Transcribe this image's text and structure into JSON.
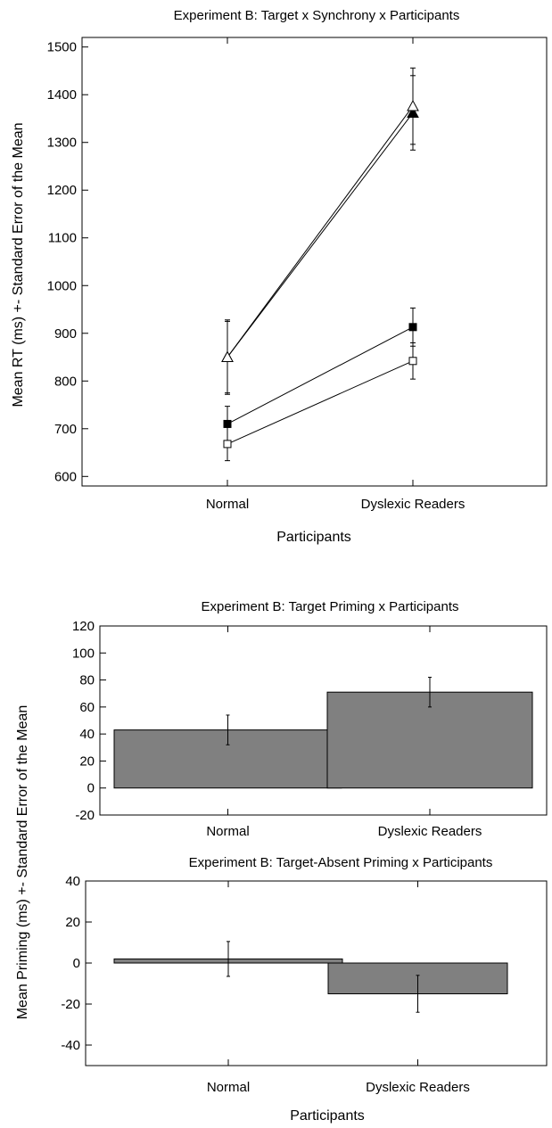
{
  "chart_data": [
    {
      "type": "line",
      "title": "Experiment B: Target x Synchrony x Participants",
      "xlabel": "Participants",
      "ylabel": "Mean RT (ms)  +- Standard Error of the Mean",
      "categories": [
        "Normal",
        "Dyslexic Readers"
      ],
      "ylim": [
        580,
        1520
      ],
      "yticks": [
        600,
        700,
        800,
        900,
        1000,
        1100,
        1200,
        1300,
        1400,
        1500
      ],
      "grid": false,
      "series": [
        {
          "marker": "filled-triangle",
          "values": [
            850,
            1362
          ],
          "errors": [
            78,
            78
          ]
        },
        {
          "marker": "open-triangle",
          "values": [
            850,
            1376
          ],
          "errors": [
            75,
            80
          ]
        },
        {
          "marker": "filled-square",
          "values": [
            710,
            913
          ],
          "errors": [
            37,
            40
          ]
        },
        {
          "marker": "open-square",
          "values": [
            668,
            842
          ],
          "errors": [
            35,
            38
          ]
        }
      ]
    },
    {
      "type": "bar",
      "title": "Experiment B: Target Priming x Participants",
      "xlabel": "",
      "categories": [
        "Normal",
        "Dyslexic Readers"
      ],
      "values": [
        43,
        71
      ],
      "errors": [
        11,
        11
      ],
      "ylim": [
        -20,
        120
      ],
      "yticks": [
        -20,
        0,
        20,
        40,
        60,
        80,
        100,
        120
      ],
      "bar_color": "#808080",
      "grid": false
    },
    {
      "type": "bar",
      "title": "Experiment B: Target-Absent Priming x Participants",
      "xlabel": "Participants",
      "categories": [
        "Normal",
        "Dyslexic Readers"
      ],
      "values": [
        2,
        -15
      ],
      "errors": [
        8.5,
        9
      ],
      "ylim": [
        -50,
        40
      ],
      "yticks": [
        -40,
        -20,
        0,
        20,
        40
      ],
      "bar_color": "#808080",
      "grid": false
    }
  ],
  "shared_ylabel": "Mean Priming (ms)  +- Standard Error of the Mean"
}
